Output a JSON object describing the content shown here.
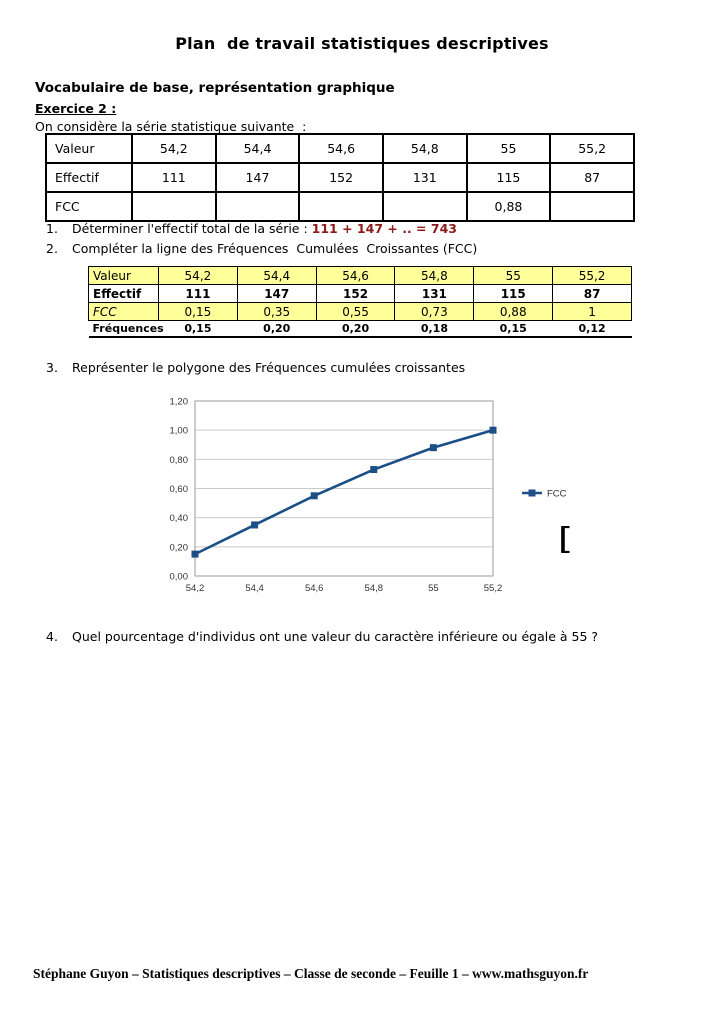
{
  "page": {
    "title": "Plan  de travail statistiques descriptives",
    "section_heading": "Vocabulaire de base, représentation graphique",
    "exercise_label": "Exercice 2 :",
    "intro": "On considère la série statistique suivante  :",
    "stray_glyph": "[",
    "footer": "Stéphane Guyon – Statistiques descriptives – Classe de seconde – Feuille 1 – www.mathsguyon.fr"
  },
  "colors": {
    "accent_red": "#8e1a1a",
    "table_yellow": "#ffff99",
    "chart_blue": "#1c4e87",
    "chart_grid": "#c9c9c9",
    "chart_border": "#9a9a9a"
  },
  "table1": {
    "rows": [
      {
        "label": "Valeur",
        "values": [
          "54,2",
          "54,4",
          "54,6",
          "54,8",
          "55",
          "55,2"
        ]
      },
      {
        "label": "Effectif",
        "values": [
          "111",
          "147",
          "152",
          "131",
          "115",
          "87"
        ]
      },
      {
        "label": "FCC",
        "values": [
          "",
          "",
          "",
          "",
          "0,88",
          ""
        ]
      }
    ]
  },
  "questions": [
    {
      "num": "1.",
      "text": "Déterminer l'effectif total de la série : ",
      "highlight": "111 + 147 + .. = 743"
    },
    {
      "num": "2.",
      "text": "Compléter la ligne des Fréquences  Cumulées  Croissantes (FCC)",
      "highlight": ""
    },
    {
      "num": "3.",
      "text": "Représenter le polygone des Fréquences cumulées croissantes",
      "highlight": ""
    },
    {
      "num": "4.",
      "text": "Quel pourcentage d'individus ont une valeur du caractère inférieure ou égale à 55 ?",
      "highlight": ""
    }
  ],
  "table2": {
    "rows": [
      {
        "label": "Valeur",
        "values": [
          "54,2",
          "54,4",
          "54,6",
          "54,8",
          "55",
          "55,2"
        ],
        "bg": "yellow",
        "bold": false,
        "italicLabel": false,
        "small": false
      },
      {
        "label": "Effectif",
        "values": [
          "111",
          "147",
          "152",
          "131",
          "115",
          "87"
        ],
        "bg": "white",
        "bold": true,
        "italicLabel": false,
        "small": false
      },
      {
        "label": "FCC",
        "values": [
          "0,15",
          "0,35",
          "0,55",
          "0,73",
          "0,88",
          "1"
        ],
        "bg": "yellow",
        "bold": false,
        "italicLabel": true,
        "small": false
      },
      {
        "label": "Fréquences",
        "values": [
          "0,15",
          "0,20",
          "0,20",
          "0,18",
          "0,15",
          "0,12"
        ],
        "bg": "white",
        "bold": true,
        "italicLabel": false,
        "small": true
      }
    ]
  },
  "chart_data": {
    "type": "line",
    "title": "",
    "x_categories": [
      "54,2",
      "54,4",
      "54,6",
      "54,8",
      "55",
      "55,2"
    ],
    "series": [
      {
        "name": "FCC",
        "values": [
          0.15,
          0.35,
          0.55,
          0.73,
          0.88,
          1.0
        ]
      }
    ],
    "y_ticks": [
      "0,00",
      "0,20",
      "0,40",
      "0,60",
      "0,80",
      "1,00",
      "1,20"
    ],
    "ylim": [
      0,
      1.2
    ],
    "grid": "horizontal",
    "legend": "FCC",
    "legend_position": "right"
  }
}
